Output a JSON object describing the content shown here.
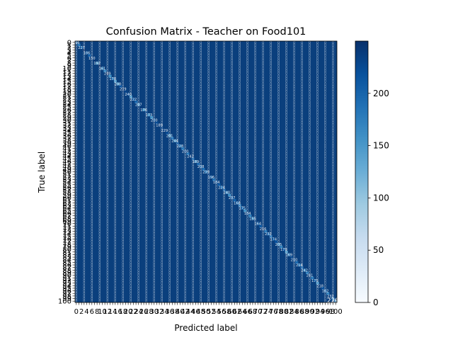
{
  "chart_data": {
    "type": "heatmap",
    "title": "Confusion Matrix - Teacher on Food101",
    "xlabel": "Predicted label",
    "ylabel": "True label",
    "rows": 101,
    "cols": 101,
    "row_tick_labels_visible": [
      "0",
      "100"
    ],
    "col_tick_labels_visible": [
      "0"
    ],
    "diagonal_annotation_example": "229",
    "diagonal_value_range": [
      150,
      250
    ],
    "off_diagonal_value_range": [
      0,
      5
    ],
    "colorbar": {
      "min": 0,
      "max": 250,
      "ticks": [
        0,
        50,
        100,
        150,
        200
      ],
      "colormap": "Blues"
    },
    "cell_annotations": true,
    "grid": false
  }
}
